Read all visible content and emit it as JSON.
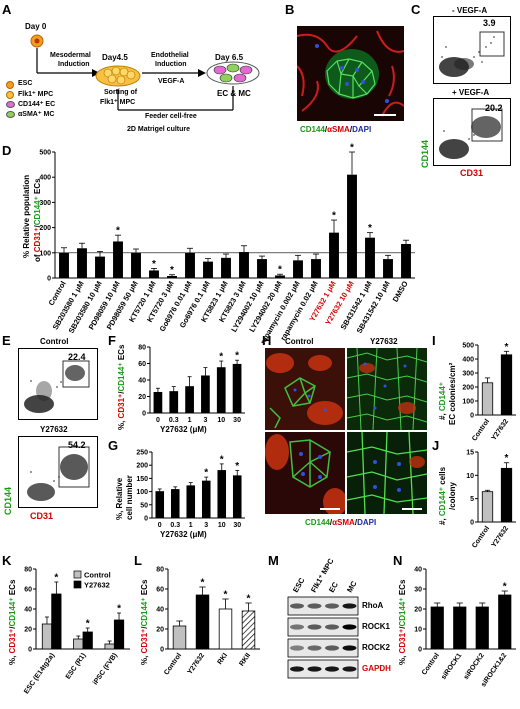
{
  "panel_labels": {
    "A": "A",
    "B": "B",
    "C": "C",
    "D": "D",
    "E": "E",
    "F": "F",
    "G": "G",
    "H": "H",
    "I": "I",
    "J": "J",
    "K": "K",
    "L": "L",
    "M": "M",
    "N": "N"
  },
  "a": {
    "day0": "Day 0",
    "day45": "Day4.5",
    "day65": "Day 6.5",
    "mesodermal": "Mesodermal",
    "induction": "Induction",
    "endothelial": "Endothelial",
    "induction2": "Induction",
    "vegfa": "VEGF-A",
    "sorting1": "Sorting of",
    "sorting2": "Flk1⁺ MPC",
    "ec_mc": "EC & MC",
    "feeder": "Feeder cell-free",
    "matrigel": "2D Matrigel culture",
    "legend": [
      "ESC",
      "Flk1⁺ MPC",
      "CD144⁺ EC",
      "αSMA⁺ MC"
    ],
    "legend_colors": [
      "#f0a020",
      "#f7c040",
      "#e26ad0",
      "#8fd15a"
    ]
  },
  "b": {
    "caption_cd144": "CD144",
    "caption_slash1": "/",
    "caption_asma": "αSMA",
    "caption_slash2": "/",
    "caption_dapi": "DAPI"
  },
  "c": {
    "minus_label": "- VEGF-A",
    "plus_label": "+ VEGF-A",
    "minus_value": "3.9",
    "plus_value": "20.2",
    "ylabel": "CD144",
    "xlabel": "CD31"
  },
  "d": {
    "ylabel_pre": "% Relative population",
    "ylabel_post": "of ",
    "ylabel_cd31": "CD31⁺",
    "ylabel_slash": "/",
    "ylabel_cd144": "CD144⁺",
    "ylabel_end": " ECs",
    "chart_data": {
      "type": "bar",
      "categories": [
        "Control",
        "SB203580 1 μM",
        "SB203580 10 μM",
        "PD98059 10 μM",
        "PD98059 50 μM",
        "KT5720 1 μM",
        "KT5720 3 μM",
        "Go6976 0.01 μM",
        "Go6976 0.1 μM",
        "KT5823 1 μM",
        "KT5823 3 μM",
        "LY294002 10 μM",
        "LY294002 20 μM",
        "rapamycin 0.002 μM",
        "rapamycin 0.02 μM",
        "Y27632 1 μM",
        "Y27632 10 μM",
        "SB431542 1 μM",
        "SB431542 10 μM",
        "DMSO"
      ],
      "values": [
        100,
        118,
        85,
        145,
        100,
        30,
        8,
        100,
        65,
        80,
        103,
        75,
        10,
        70,
        75,
        180,
        410,
        160,
        75,
        135
      ],
      "errors": [
        20,
        20,
        20,
        25,
        15,
        8,
        5,
        18,
        12,
        15,
        25,
        12,
        5,
        20,
        20,
        50,
        90,
        20,
        15,
        15
      ],
      "significant": [
        false,
        false,
        false,
        true,
        false,
        true,
        true,
        false,
        false,
        false,
        false,
        false,
        true,
        false,
        false,
        true,
        true,
        true,
        false,
        false
      ],
      "highlight_red": [
        false,
        false,
        false,
        false,
        false,
        false,
        false,
        false,
        false,
        false,
        false,
        false,
        false,
        false,
        false,
        true,
        true,
        false,
        false,
        false
      ],
      "yticks": [
        0,
        100,
        200,
        300,
        400,
        500
      ],
      "ylim": [
        0,
        500
      ],
      "star": "*"
    }
  },
  "e": {
    "control_label": "Control",
    "treated_label": "Y27632",
    "control_value": "22.4",
    "treated_value": "54.2",
    "ylabel": "CD144",
    "xlabel": "CD31"
  },
  "f": {
    "ylabel_pre": "%, ",
    "ylabel_cd31": "CD31⁺",
    "ylabel_slash": "/",
    "ylabel_cd144": "CD144⁺",
    "ylabel_end": " ECs",
    "xlabel": "Y27632 (μM)",
    "chart_data": {
      "type": "bar",
      "categories": [
        "0",
        "0.3",
        "1",
        "3",
        "10",
        "30"
      ],
      "values": [
        25,
        26,
        32,
        45,
        55,
        59
      ],
      "errors": [
        5,
        6,
        12,
        10,
        8,
        5
      ],
      "significant": [
        false,
        false,
        false,
        false,
        true,
        true
      ],
      "yticks": [
        0,
        20,
        40,
        60,
        80
      ],
      "ylim": [
        0,
        80
      ],
      "star": "*"
    }
  },
  "g": {
    "ylabel1": "%, Relative",
    "ylabel2": "cell number",
    "xlabel": "Y27632 (μM)",
    "chart_data": {
      "type": "bar",
      "categories": [
        "0",
        "0.3",
        "1",
        "3",
        "10",
        "30"
      ],
      "values": [
        100,
        108,
        122,
        140,
        180,
        160
      ],
      "errors": [
        10,
        10,
        12,
        15,
        25,
        20
      ],
      "significant": [
        false,
        false,
        false,
        true,
        true,
        true
      ],
      "yticks": [
        0,
        50,
        100,
        150,
        200,
        250
      ],
      "ylim": [
        0,
        250
      ],
      "star": "*"
    }
  },
  "h": {
    "control_label": "Control",
    "treated_label": "Y27632",
    "caption_cd144": "CD144",
    "caption_slash1": "/",
    "caption_asma": "αSMA",
    "caption_slash2": "/",
    "caption_dapi": "DAPI"
  },
  "i": {
    "ylabel1": "#, ",
    "ylabel_cd144": "CD144⁺",
    "ylabel2": "EC colonies/cm²",
    "chart_data": {
      "type": "bar",
      "categories": [
        "Control",
        "Y27632"
      ],
      "values": [
        230,
        430
      ],
      "errors": [
        35,
        25
      ],
      "significant": [
        false,
        true
      ],
      "yticks": [
        0,
        100,
        200,
        300,
        400,
        500
      ],
      "ylim": [
        0,
        500
      ],
      "colors": [
        "#c0c0c0",
        "#000000"
      ],
      "star": "*"
    }
  },
  "j": {
    "ylabel1": "#, ",
    "ylabel_cd144": "CD144⁺",
    "ylabel2": " cells",
    "ylabel3": "/colony",
    "chart_data": {
      "type": "bar",
      "categories": [
        "Control",
        "Y27632"
      ],
      "values": [
        6.5,
        11.5
      ],
      "errors": [
        0.3,
        1.2
      ],
      "significant": [
        false,
        true
      ],
      "yticks": [
        0,
        5,
        10,
        15
      ],
      "ylim": [
        0,
        15
      ],
      "colors": [
        "#c0c0c0",
        "#000000"
      ],
      "star": "*"
    }
  },
  "k": {
    "ylabel_pre": "%, ",
    "ylabel_cd31": "CD31⁺",
    "ylabel_slash": "/",
    "ylabel_cd144": "CD144⁺",
    "ylabel_end": " ECs",
    "chart_data": {
      "type": "bar",
      "categories": [
        "ESC (E14tg2a)",
        "ESC (R1)",
        "iPSC (FVB)"
      ],
      "series": [
        {
          "name": "Control",
          "values": [
            25,
            10,
            5
          ],
          "errors": [
            7,
            3,
            3
          ],
          "color": "#c0c0c0"
        },
        {
          "name": "Y27632",
          "values": [
            55,
            17,
            29
          ],
          "errors": [
            12,
            4,
            7
          ],
          "color": "#000000"
        }
      ],
      "significant": [
        true,
        true,
        true
      ],
      "yticks": [
        0,
        20,
        40,
        60,
        80
      ],
      "ylim": [
        0,
        80
      ],
      "star": "*"
    }
  },
  "l": {
    "ylabel_pre": "%, ",
    "ylabel_cd31": "CD31⁺",
    "ylabel_slash": "/",
    "ylabel_cd144": "CD144⁺",
    "ylabel_end": " ECs",
    "chart_data": {
      "type": "bar",
      "categories": [
        "Control",
        "Y27632",
        "RKI",
        "RKII"
      ],
      "values": [
        23,
        54,
        40,
        38
      ],
      "errors": [
        5,
        8,
        10,
        8
      ],
      "significant": [
        false,
        true,
        true,
        true
      ],
      "fills": [
        "#c0c0c0",
        "#000000",
        "#ffffff",
        "hatch"
      ],
      "yticks": [
        0,
        20,
        40,
        60,
        80
      ],
      "ylim": [
        0,
        80
      ],
      "star": "*"
    }
  },
  "m": {
    "columns": [
      "ESC",
      "Flk1⁺ MPC",
      "EC",
      "MC"
    ],
    "rows": [
      "RhoA",
      "ROCK1",
      "ROCK2",
      "GAPDH"
    ],
    "row_label_colors": [
      "#000000",
      "#000000",
      "#000000",
      "#d40000"
    ]
  },
  "n": {
    "ylabel_pre": "%, ",
    "ylabel_cd31": "CD31⁺",
    "ylabel_slash": "/",
    "ylabel_cd144": "CD144⁺",
    "ylabel_end": " ECs",
    "chart_data": {
      "type": "bar",
      "categories": [
        "Control",
        "siROCK1",
        "siROCK2",
        "siROCK1&2"
      ],
      "values": [
        21,
        21,
        21,
        27
      ],
      "errors": [
        2,
        2,
        2,
        2
      ],
      "significant": [
        false,
        false,
        false,
        true
      ],
      "yticks": [
        0,
        10,
        20,
        30,
        40
      ],
      "ylim": [
        0,
        40
      ],
      "star": "*"
    }
  }
}
